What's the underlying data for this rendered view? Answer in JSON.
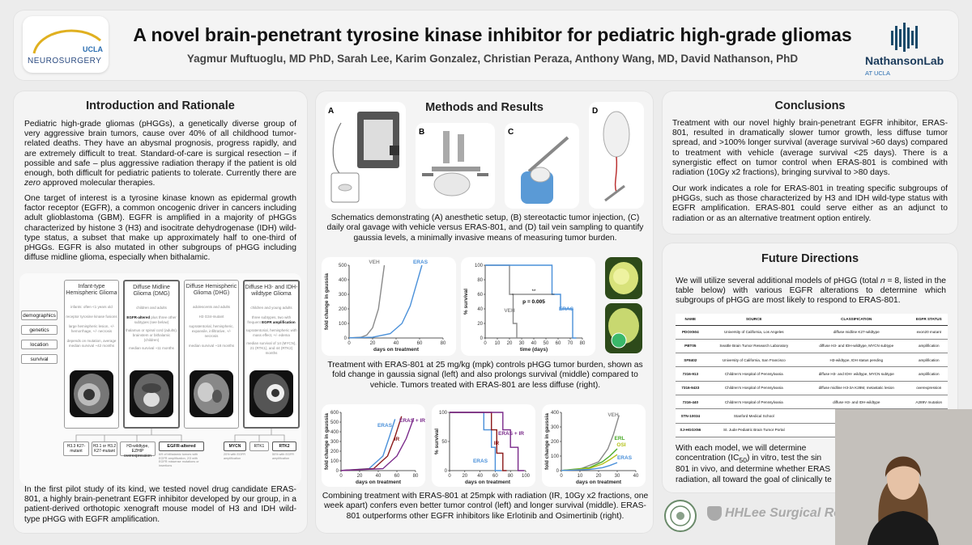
{
  "header": {
    "title": "A novel brain-penetrant tyrosine kinase inhibitor for pediatric high-grade gliomas",
    "authors": "Yagmur Muftuoglu, MD PhD, Sarah Lee, Karim Gonzalez, Christian Peraza, Anthony Wang, MD, David Nathanson, PhD",
    "logo_left_top": "UCLA",
    "logo_left_bottom": "NEUROSURGERY",
    "logo_right_main": "NathansonLab",
    "logo_right_sub": "AT UCLA"
  },
  "intro": {
    "title": "Introduction and Rationale",
    "p1a": "Pediatric high-grade gliomas (pHGGs), a genetically diverse group of very aggressive brain tumors, cause over 40% of all childhood tumor-related deaths. They have an abysmal prognosis, progress rapidly, and are extremely difficult to treat. Standard-of-care is surgical resection – if possible and safe – plus aggressive radiation therapy if the patient is old enough, both difficult for pediatric patients to tolerate. Currently there are ",
    "p1_em": "zero",
    "p1b": " approved molecular therapies.",
    "p2": "One target of interest is a tyrosine kinase known as epidermal growth factor receptor (EGFR), a common oncogenic driver in cancers including adult glioblastoma (GBM). EGFR is amplified in a majority of pHGGs characterized by histone 3 (H3) and isocitrate dehydrogenase (IDH) wild-type status, a subset that make up approximately half to one-third of pHGGs. EGFR is also mutated in other subgroups of pHGG including diffuse midline glioma, especially when bithalamic.",
    "p3": "In the first pilot study of its kind, we tested novel drug candidate ERAS-801, a highly brain-penetrant EGFR inhibitor developed by our group, in a patient-derived orthotopic xenograft mouse model of H3 and IDH wild-type pHGG with EGFR amplification.",
    "figure": {
      "row_labels": [
        "demographics",
        "genetics",
        "location",
        "survival"
      ],
      "columns": [
        {
          "name": "Infant-type Hemispheric Glioma",
          "demo": "infants: often <1 years old",
          "gen": "receptor tyrosine kinase fusions",
          "loc": "large hemispheric lesion, +/- hemorrhage, +/- necrosis",
          "surv": "depends on mutation, average median survival ~42 months"
        },
        {
          "name": "Diffuse Midline Glioma (DMG)",
          "demo": "children and adults",
          "gen_b": "EGFR-altered",
          "gen": "plus three other subtypes (see below)",
          "loc": "thalamus or spinal cord (adults), brainstem or bithalamic (children)",
          "surv": "median survival ~11 months"
        },
        {
          "name": "Diffuse Hemispheric Glioma (DHG)",
          "demo": "adolescents and adults",
          "gen": "H3 G34-mutant",
          "loc": "supratentorial, hemispheric, expansile, infiltrative, +/- necrosis",
          "surv": "median survival ~18 months"
        },
        {
          "name": "Diffuse H3- and IDH-wildtype Glioma",
          "demo": "children and young adults",
          "gen_b": "EGFR amplification",
          "gen": "three subtypes, two with frequent",
          "loc": "supratentorial, hemispheric with mass effect, +/- edema",
          "surv": "median survival of 14 (MYCN), 21 (RTK1), and 44 (RTK2) months"
        }
      ],
      "sub_boxes": [
        {
          "label": "H3.3 K27-mutant"
        },
        {
          "label": "H3.1 or H3.2 K27-mutant"
        },
        {
          "label": "H3-wildtype, EZHIP overexpression"
        },
        {
          "label": "EGFR-altered",
          "note": "6/9 of bithalamic tumors with EGFR amplification, 2/3 with EGFR missense mutations or insertions"
        },
        {
          "label": "MYCN",
          "note": "20% with EGFR amplification"
        },
        {
          "label": "RTK1"
        },
        {
          "label": "RTK2",
          "note": "50% with EGFR amplification"
        }
      ]
    }
  },
  "methods": {
    "title": "Methods and Results",
    "panel_letters": [
      "A",
      "B",
      "C",
      "D"
    ],
    "caption1": "Schematics demonstrating (A) anesthetic setup, (B) stereotactic tumor injection, (C) daily oral gavage with vehicle versus ERAS-801, and (D) tail vein sampling to quantify gaussia levels, a minimally invasive means of measuring tumor burden.",
    "caption2": "Treatment with ERAS-801 at 25 mg/kg (mpk) controls pHGG tumor burden, shown as fold change in gaussia signal (left) and also prolongs survival (middle) compared to vehicle. Tumors treated with ERAS-801 are less diffuse (right).",
    "caption3": "Combining treatment with ERAS-801 at 25mpk with radiation (IR, 10Gy x2 fractions, one week apart) confers even better tumor control (left) and longer survival (middle). ERAS-801 outperforms other EGFR inhibitors like Erlotinib and Osimertinib (right)."
  },
  "chart_data": [
    {
      "type": "line",
      "title": "",
      "xlabel": "days on treatment",
      "ylabel": "fold change in gaussia",
      "xlim": [
        0,
        80
      ],
      "ylim": [
        0,
        500
      ],
      "xticks": [
        0,
        20,
        40,
        60,
        80
      ],
      "yticks": [
        0,
        100,
        200,
        300,
        400,
        500
      ],
      "series": [
        {
          "name": "VEH",
          "color": "#8a8a8a",
          "x": [
            0,
            10,
            15,
            20,
            25,
            28,
            30
          ],
          "y": [
            1,
            5,
            20,
            70,
            200,
            380,
            500
          ]
        },
        {
          "name": "ERAS",
          "color": "#4a90d9",
          "x": [
            0,
            20,
            35,
            45,
            52,
            57,
            62
          ],
          "y": [
            1,
            5,
            30,
            100,
            220,
            360,
            500
          ]
        }
      ]
    },
    {
      "type": "line",
      "title": "",
      "xlabel": "time (days)",
      "ylabel": "% survival",
      "xlim": [
        0,
        80
      ],
      "ylim": [
        0,
        100
      ],
      "xticks": [
        0,
        10,
        20,
        30,
        40,
        50,
        60,
        70,
        80
      ],
      "yticks": [
        0,
        20,
        40,
        60,
        80,
        100
      ],
      "annotations": [
        "**",
        "p = 0.005"
      ],
      "series": [
        {
          "name": "VEH",
          "color": "#8a8a8a",
          "x": [
            0,
            20,
            20,
            23,
            23,
            26,
            26,
            30
          ],
          "y": [
            100,
            100,
            60,
            60,
            20,
            20,
            0,
            0
          ]
        },
        {
          "name": "ERAS",
          "color": "#4a90d9",
          "x": [
            0,
            55,
            55,
            62,
            62,
            72,
            72,
            75
          ],
          "y": [
            100,
            100,
            60,
            60,
            40,
            40,
            0,
            0
          ]
        }
      ]
    },
    {
      "type": "line",
      "title": "",
      "xlabel": "days on treatment",
      "ylabel": "fold change in gaussia",
      "xlim": [
        0,
        80
      ],
      "ylim": [
        0,
        600
      ],
      "xticks": [
        0,
        20,
        40,
        60,
        80
      ],
      "yticks": [
        0,
        100,
        200,
        300,
        400,
        500,
        600
      ],
      "series": [
        {
          "name": "ERAS",
          "color": "#4a90d9",
          "x": [
            0,
            30,
            45,
            52,
            58
          ],
          "y": [
            1,
            20,
            150,
            350,
            530
          ]
        },
        {
          "name": "IR",
          "color": "#8b1a1a",
          "x": [
            0,
            35,
            50,
            58,
            65
          ],
          "y": [
            1,
            20,
            150,
            350,
            560
          ]
        },
        {
          "name": "ERAS + IR",
          "color": "#7a2a8a",
          "x": [
            0,
            45,
            60,
            70,
            78
          ],
          "y": [
            1,
            20,
            150,
            330,
            540
          ]
        }
      ]
    },
    {
      "type": "line",
      "title": "",
      "xlabel": "days on treatment",
      "ylabel": "% survival",
      "xlim": [
        0,
        100
      ],
      "ylim": [
        0,
        100
      ],
      "xticks": [
        0,
        20,
        40,
        60,
        80,
        100
      ],
      "yticks": [
        0,
        50,
        100
      ],
      "series": [
        {
          "name": "ERAS",
          "color": "#4a90d9",
          "x": [
            0,
            45,
            45,
            55,
            55,
            60,
            60,
            68
          ],
          "y": [
            100,
            100,
            70,
            70,
            40,
            40,
            0,
            0
          ]
        },
        {
          "name": "IR",
          "color": "#8b1a1a",
          "x": [
            0,
            55,
            55,
            62,
            62,
            70,
            70,
            75
          ],
          "y": [
            100,
            100,
            70,
            70,
            30,
            30,
            0,
            0
          ]
        },
        {
          "name": "ERAS + IR",
          "color": "#7a2a8a",
          "x": [
            0,
            70,
            70,
            80,
            80,
            90,
            90,
            98
          ],
          "y": [
            100,
            100,
            70,
            70,
            40,
            40,
            0,
            0
          ]
        }
      ]
    },
    {
      "type": "line",
      "title": "",
      "xlabel": "days on treatment",
      "ylabel": "fold change in gaussia",
      "xlim": [
        0,
        40
      ],
      "ylim": [
        0,
        400
      ],
      "xticks": [
        0,
        10,
        20,
        30,
        40
      ],
      "yticks": [
        0,
        100,
        200,
        300,
        400
      ],
      "series": [
        {
          "name": "VEH",
          "color": "#8a8a8a",
          "x": [
            0,
            10,
            20,
            25,
            28,
            31
          ],
          "y": [
            1,
            10,
            60,
            150,
            250,
            380
          ]
        },
        {
          "name": "ERL",
          "color": "#4aaa2a",
          "x": [
            0,
            15,
            22,
            26,
            30
          ],
          "y": [
            1,
            20,
            60,
            100,
            150
          ]
        },
        {
          "name": "OSI",
          "color": "#b5c21a",
          "x": [
            0,
            15,
            22,
            26,
            30
          ],
          "y": [
            1,
            15,
            45,
            75,
            110
          ]
        },
        {
          "name": "ERAS",
          "color": "#4a90d9",
          "x": [
            0,
            15,
            22,
            26,
            30
          ],
          "y": [
            1,
            8,
            20,
            35,
            55
          ]
        }
      ]
    }
  ],
  "conclusions": {
    "title": "Conclusions",
    "p1": "Treatment with our novel highly brain-penetrant EGFR inhibitor, ERAS-801, resulted in dramatically slower tumor growth, less diffuse tumor spread, and >100% longer survival (average survival >60 days) compared to treatment with vehicle (average survival <25 days). There is a synergistic effect on tumor control when ERAS-801 is combined with radiation (10Gy x2 fractions), bringing survival to >80 days.",
    "p2": "Our work indicates a role for ERAS-801 in treating specific subgroups of pHGGs, such as those characterized by H3 and IDH wild-type status with EGFR amplification. ERAS-801 could serve either as an adjunct to radiation or as an alternative treatment option entirely."
  },
  "future": {
    "title": "Future Directions",
    "p1a": "We will utilize several additional models of pHGG (total ",
    "p1_n": "n",
    "p1b": " = 8, listed in the table below) with various EGFR alterations to determine which subgroups of pHGG are most likely to respond to ERAS-801.",
    "p2": "With each model, we will determine ",
    "p2b": "concentration (IC",
    "p2_sub": "50",
    "p2c": ") in vitro, test the sin",
    "p2d": "801 in vivo, and determine whether ERAS",
    "p2e": "radiation, all toward the goal of clinically te",
    "table": {
      "headers": [
        "NAME",
        "SOURCE",
        "CLASSIFICATION",
        "EGFR STATUS"
      ],
      "rows": [
        [
          "PDOX504",
          "University of California, Los Angeles",
          "diffuse midline K27-wildtype",
          "exon20 mutant"
        ],
        [
          "PBT05",
          "Seattle Brain Tumor Research Laboratory",
          "diffuse H3- and IDH-wildtype, MYCN subtype",
          "amplification"
        ],
        [
          "SF8402",
          "University of California, San Francisco",
          "H3-wildtype, IDH status pending",
          "amplification"
        ],
        [
          "7316-913",
          "Children's Hospital of Pennsylvania",
          "diffuse H3- and IDH- wildtype, MYCN subtype",
          "amplification"
        ],
        [
          "7316-9433",
          "Children's Hospital of Pennsylvania",
          "diffuse midline H3-3A K28M, metastatic lesion",
          "overexpression"
        ],
        [
          "7316-440",
          "Children's Hospital of Pennsylvania",
          "diffuse H3- and IDH-wildtype",
          "A289V mutation"
        ],
        [
          "STN-10034",
          "Stanford Medical School",
          "diffuse H3- and",
          ""
        ],
        [
          "SJ-HGGX56",
          "St. Jude Pediatric Brain Tumor Portal",
          "mismatch repair",
          ""
        ]
      ]
    },
    "sponsor": "HHLee Surgical Resea"
  }
}
